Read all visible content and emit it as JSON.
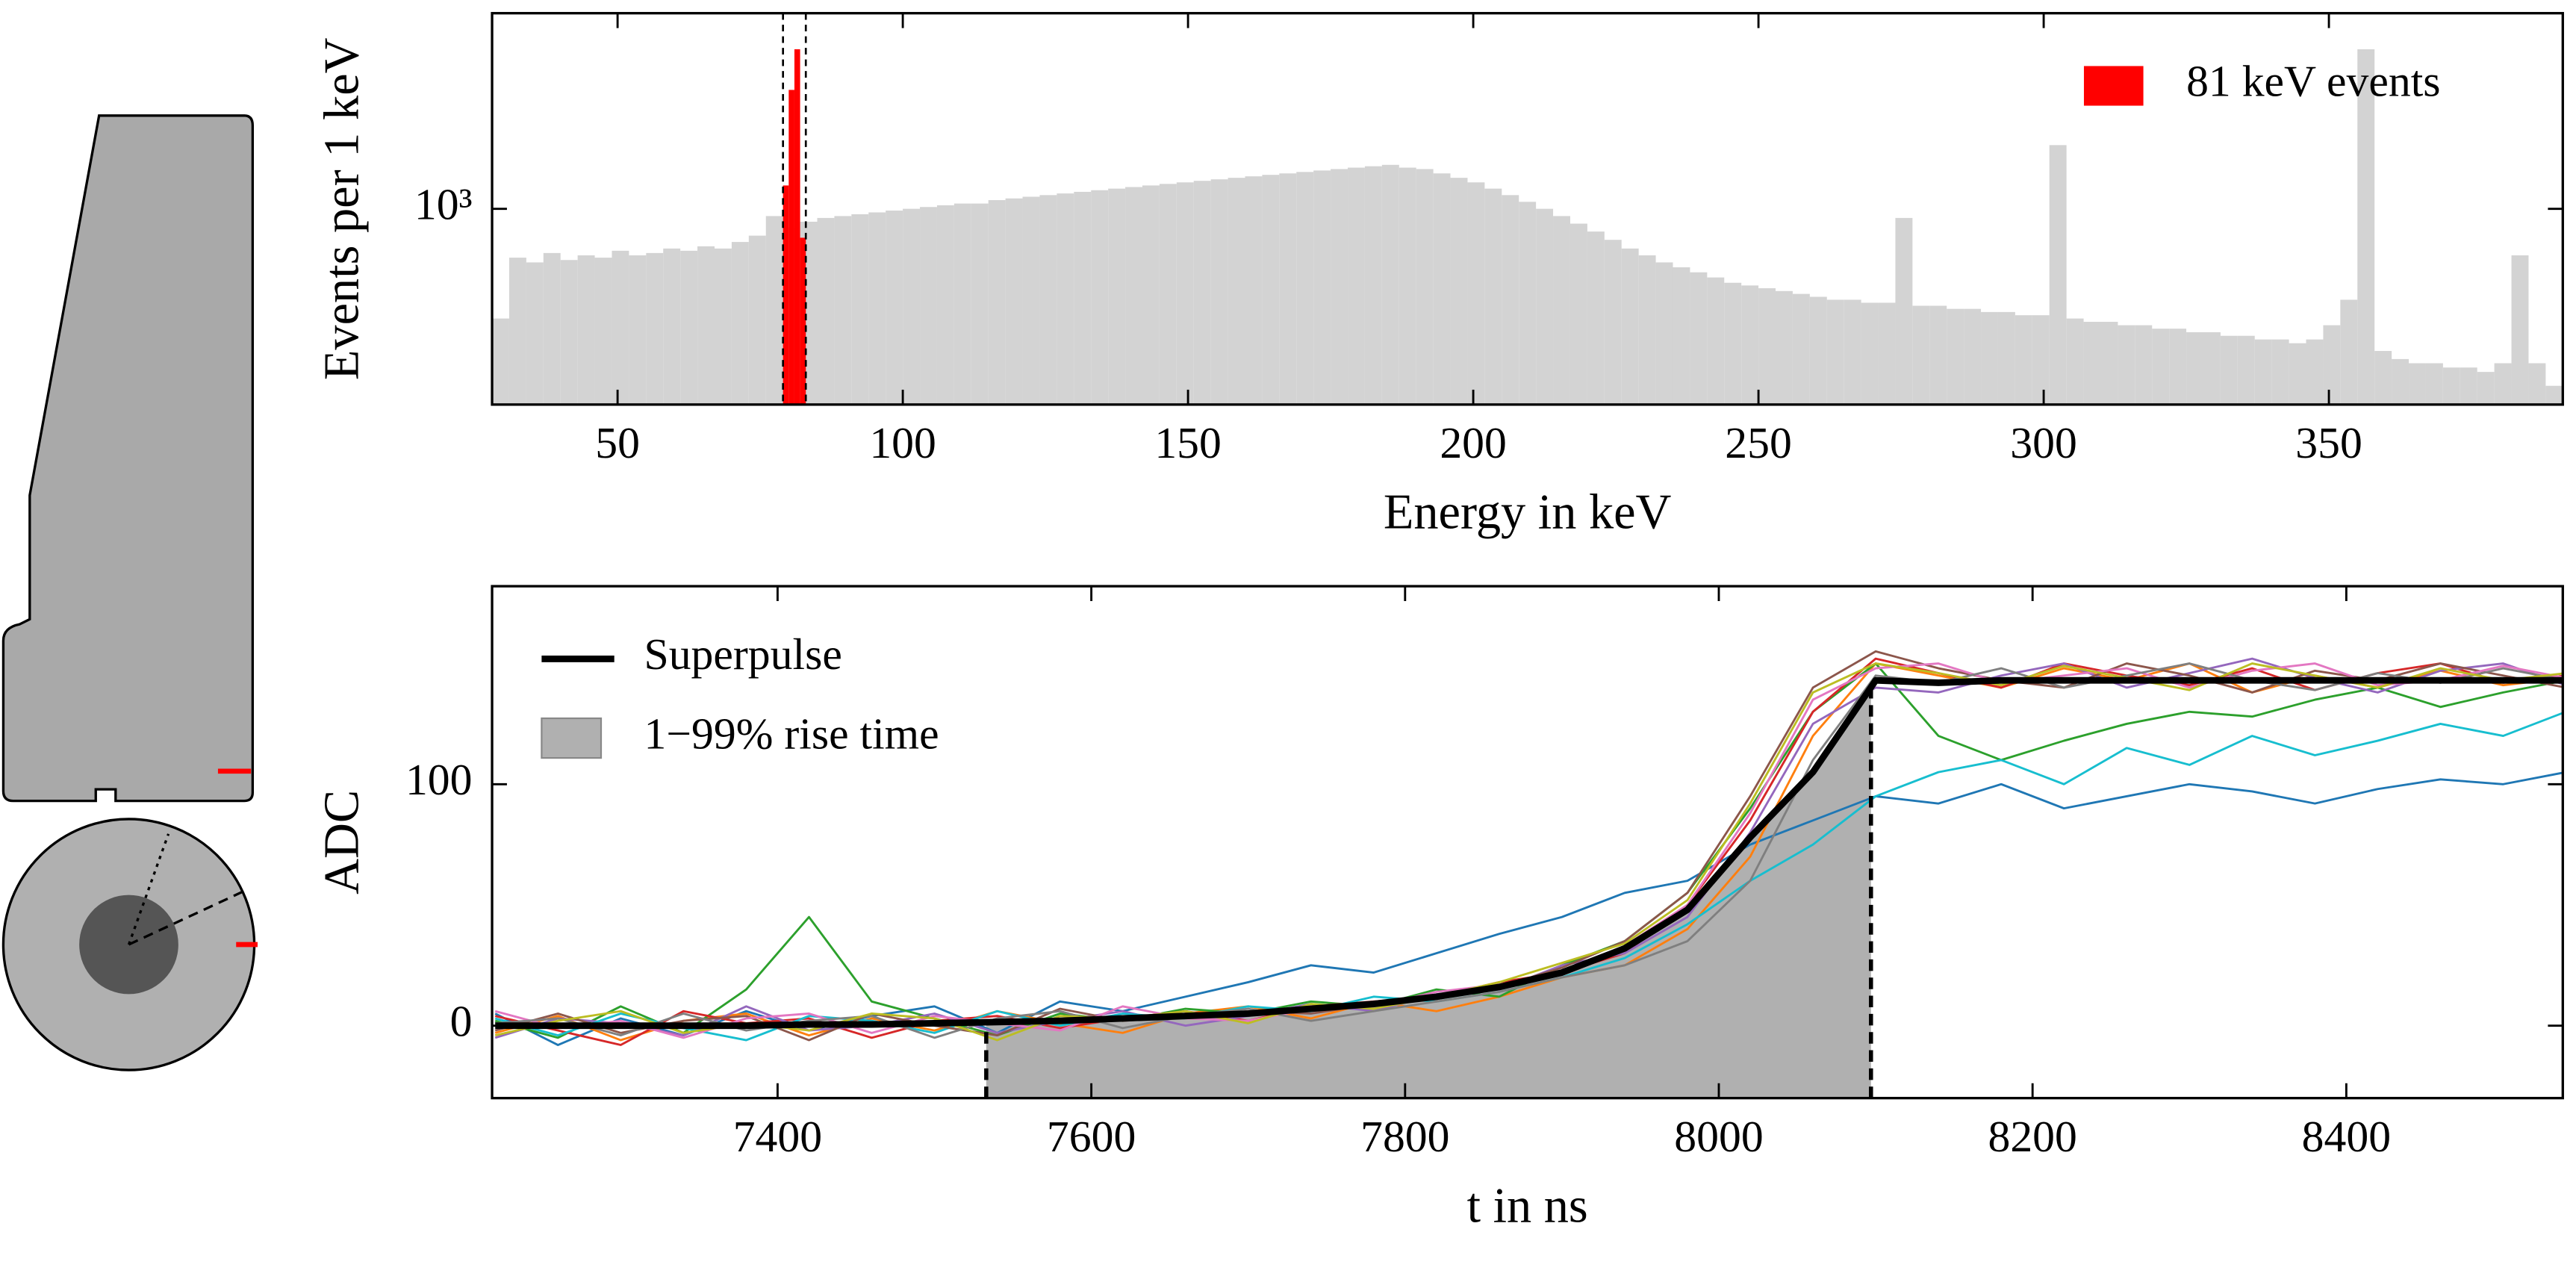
{
  "chart_data": [
    {
      "type": "histogram",
      "xlabel": "Energy in keV",
      "ylabel": "Events per 1 keV",
      "xlim": [
        28,
        391
      ],
      "ylim": [
        333,
        3000
      ],
      "log_y": true,
      "xticks": [
        50,
        100,
        150,
        200,
        250,
        300,
        350
      ],
      "yticks": [
        {
          "value": 1000,
          "label": "10³"
        }
      ],
      "legend": "upper right",
      "vlines": [
        79,
        83
      ],
      "series": [
        {
          "color": "#d3d3d3",
          "bins": [
            28,
            31,
            34,
            37,
            40,
            43,
            46,
            49,
            52,
            55,
            58,
            61,
            64,
            67,
            70,
            73,
            76,
            79,
            82,
            85,
            88,
            91,
            94,
            97,
            100,
            103,
            106,
            109,
            112,
            115,
            118,
            121,
            124,
            127,
            130,
            133,
            136,
            139,
            142,
            145,
            148,
            151,
            154,
            157,
            160,
            163,
            166,
            169,
            172,
            175,
            178,
            181,
            184,
            187,
            190,
            193,
            196,
            199,
            202,
            205,
            208,
            211,
            214,
            217,
            220,
            223,
            226,
            229,
            232,
            235,
            238,
            241,
            244,
            247,
            250,
            253,
            256,
            259,
            262,
            265,
            268,
            271,
            274,
            277,
            280,
            283,
            286,
            289,
            292,
            295,
            298,
            301,
            304,
            307,
            310,
            313,
            316,
            319,
            322,
            325,
            328,
            331,
            334,
            337,
            340,
            343,
            346,
            349,
            352,
            355,
            358,
            361,
            364,
            367,
            370,
            373,
            376,
            379,
            382,
            385,
            388,
            391
          ],
          "values": [
            540,
            760,
            740,
            780,
            750,
            770,
            760,
            790,
            770,
            780,
            800,
            790,
            810,
            800,
            830,
            860,
            960,
            900,
            930,
            950,
            960,
            970,
            980,
            990,
            1000,
            1010,
            1020,
            1030,
            1030,
            1050,
            1060,
            1070,
            1080,
            1090,
            1100,
            1110,
            1120,
            1130,
            1140,
            1150,
            1160,
            1170,
            1180,
            1190,
            1200,
            1210,
            1220,
            1230,
            1240,
            1250,
            1260,
            1270,
            1280,
            1260,
            1250,
            1220,
            1190,
            1160,
            1120,
            1080,
            1040,
            1000,
            960,
            920,
            880,
            840,
            800,
            770,
            740,
            720,
            700,
            680,
            660,
            650,
            640,
            630,
            620,
            610,
            600,
            600,
            590,
            590,
            950,
            580,
            580,
            570,
            570,
            560,
            560,
            550,
            550,
            1430,
            540,
            530,
            530,
            520,
            520,
            510,
            510,
            500,
            500,
            490,
            490,
            480,
            480,
            470,
            480,
            520,
            600,
            2450,
            450,
            430,
            420,
            420,
            410,
            410,
            400,
            420,
            770,
            420,
            370
          ]
        },
        {
          "name": "81 keV events",
          "color": "#ff0000",
          "bins": [
            79,
            80,
            81,
            82,
            83
          ],
          "values": [
            1140,
            1950,
            2450,
            850
          ]
        }
      ]
    },
    {
      "type": "line",
      "xlabel": "t in ns",
      "ylabel": "ADC",
      "x": [
        7220,
        7260,
        7300,
        7340,
        7380,
        7420,
        7460,
        7500,
        7540,
        7580,
        7620,
        7660,
        7700,
        7740,
        7780,
        7820,
        7860,
        7900,
        7940,
        7980,
        8020,
        8060,
        8100,
        8140,
        8180,
        8220,
        8260,
        8300,
        8340,
        8380,
        8420,
        8460,
        8500,
        8540
      ],
      "xlim": [
        7218,
        8538
      ],
      "ylim": [
        -30,
        182
      ],
      "xticks": [
        7400,
        7600,
        7800,
        8000,
        8200,
        8400
      ],
      "yticks": [
        0,
        100
      ],
      "legend": "upper left",
      "series": [
        {
          "color": "#1f77b4",
          "values": [
            5,
            -8,
            3,
            -4,
            6,
            -2,
            4,
            8,
            -3,
            10,
            6,
            12,
            18,
            25,
            22,
            30,
            38,
            45,
            55,
            60,
            75,
            85,
            95,
            92,
            100,
            90,
            95,
            100,
            97,
            92,
            98,
            102,
            100,
            105
          ]
        },
        {
          "color": "#ff7f0e",
          "values": [
            -3,
            4,
            -6,
            2,
            5,
            -4,
            3,
            -2,
            6,
            1,
            -3,
            5,
            8,
            3,
            10,
            6,
            12,
            20,
            25,
            40,
            70,
            120,
            150,
            145,
            140,
            148,
            143,
            150,
            138,
            145,
            140,
            147,
            141,
            144
          ]
        },
        {
          "color": "#2ca02c",
          "values": [
            2,
            -5,
            8,
            -3,
            15,
            45,
            10,
            3,
            -4,
            5,
            2,
            7,
            5,
            10,
            8,
            15,
            12,
            25,
            35,
            55,
            90,
            130,
            150,
            120,
            110,
            118,
            125,
            130,
            128,
            135,
            140,
            132,
            138,
            143
          ]
        },
        {
          "color": "#d62728",
          "values": [
            4,
            -2,
            -8,
            6,
            1,
            3,
            -5,
            2,
            4,
            -1,
            3,
            6,
            2,
            8,
            10,
            12,
            18,
            22,
            30,
            50,
            85,
            130,
            152,
            146,
            140,
            150,
            145,
            141,
            148,
            139,
            146,
            150,
            142,
            145
          ]
        },
        {
          "color": "#9467bd",
          "values": [
            -5,
            3,
            1,
            -4,
            8,
            -2,
            0,
            5,
            -3,
            2,
            6,
            0,
            4,
            9,
            6,
            13,
            15,
            25,
            30,
            45,
            80,
            125,
            140,
            138,
            145,
            150,
            140,
            146,
            152,
            144,
            138,
            147,
            150,
            141
          ]
        },
        {
          "color": "#17becf",
          "values": [
            3,
            -4,
            5,
            -1,
            -6,
            4,
            2,
            -3,
            6,
            0,
            5,
            3,
            8,
            6,
            12,
            10,
            14,
            20,
            28,
            42,
            60,
            75,
            95,
            105,
            110,
            100,
            115,
            108,
            120,
            112,
            118,
            125,
            120,
            130
          ]
        },
        {
          "color": "#8c564b",
          "values": [
            -2,
            5,
            -3,
            2,
            4,
            -6,
            5,
            0,
            -4,
            7,
            2,
            4,
            6,
            5,
            9,
            11,
            16,
            24,
            35,
            55,
            95,
            140,
            155,
            148,
            143,
            140,
            150,
            145,
            138,
            147,
            143,
            150,
            145,
            140
          ]
        },
        {
          "color": "#e377c2",
          "values": [
            6,
            -1,
            2,
            -5,
            3,
            5,
            -3,
            4,
            1,
            -2,
            8,
            3,
            2,
            7,
            8,
            14,
            17,
            21,
            33,
            50,
            88,
            135,
            148,
            150,
            142,
            145,
            148,
            140,
            147,
            150,
            141,
            143,
            149,
            144
          ]
        },
        {
          "color": "#7f7f7f",
          "values": [
            1,
            3,
            -4,
            5,
            -2,
            2,
            4,
            -5,
            3,
            6,
            -1,
            4,
            7,
            2,
            6,
            10,
            14,
            20,
            25,
            35,
            60,
            110,
            145,
            142,
            148,
            140,
            145,
            150,
            143,
            139,
            146,
            142,
            148,
            143
          ]
        },
        {
          "color": "#bcbd22",
          "values": [
            -4,
            2,
            6,
            -3,
            1,
            -2,
            5,
            3,
            -6,
            4,
            3,
            6,
            1,
            9,
            7,
            12,
            18,
            26,
            34,
            52,
            92,
            138,
            150,
            146,
            141,
            149,
            144,
            139,
            150,
            145,
            140,
            148,
            143,
            146
          ]
        },
        {
          "name": "Superpulse",
          "color": "#000000",
          "values": [
            0,
            0,
            0,
            0,
            0,
            0.5,
            0.5,
            1,
            1.5,
            2,
            3,
            4,
            5,
            7,
            9,
            12,
            16,
            22,
            32,
            48,
            78,
            105,
            143,
            142,
            143,
            143,
            143,
            143,
            143,
            143,
            143,
            143,
            143,
            143
          ]
        }
      ],
      "rise_time": {
        "name": "1−99% rise time",
        "start": 7533,
        "end": 8097,
        "color": "#b0b0b0"
      }
    }
  ]
}
